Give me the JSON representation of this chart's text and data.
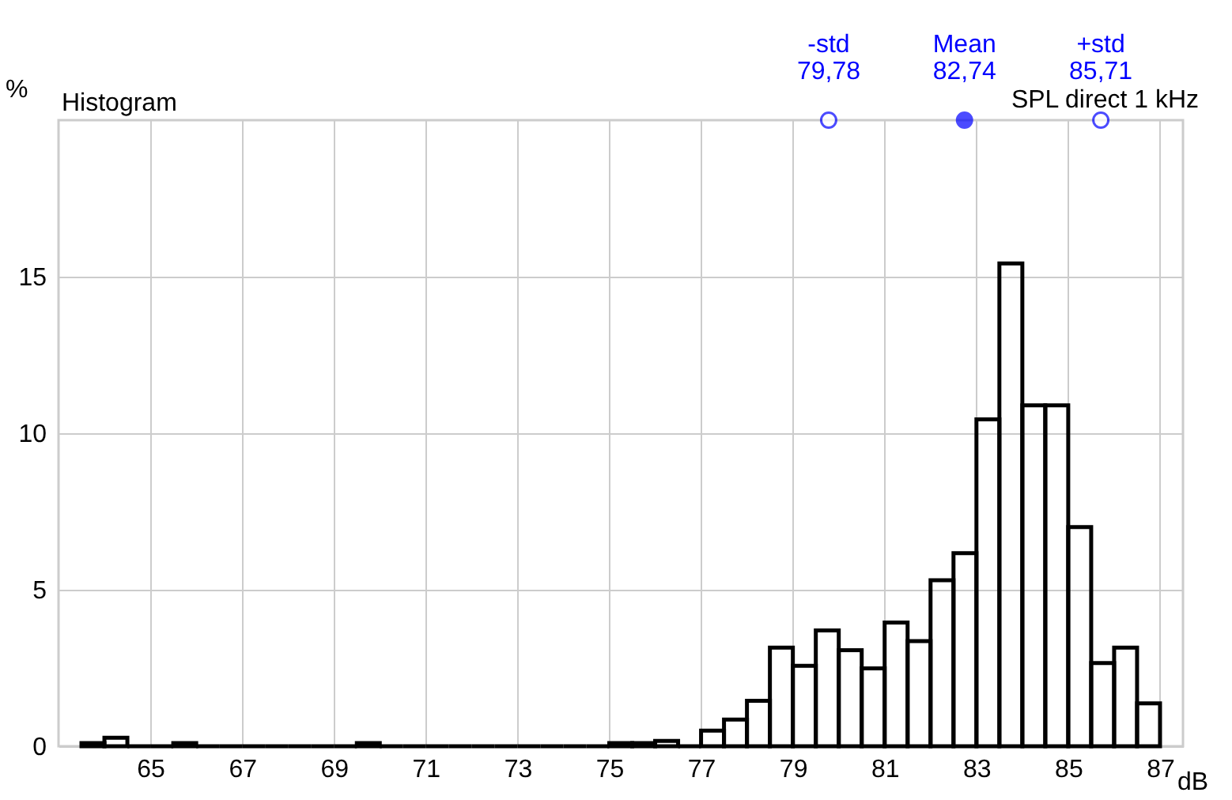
{
  "chart_data": {
    "type": "histogram",
    "title": "Histogram",
    "xlabel": "dB",
    "ylabel": "%",
    "bins": [
      63.5,
      64,
      64.5,
      65,
      65.5,
      66,
      66.5,
      67,
      67.5,
      68,
      68.5,
      69,
      69.5,
      70,
      70.5,
      71,
      71.5,
      72,
      72.5,
      73,
      73.5,
      74,
      74.5,
      75,
      75.5,
      76,
      76.5,
      77,
      77.5,
      78,
      78.5,
      79,
      79.5,
      80,
      80.5,
      81,
      81.5,
      82,
      82.5,
      83,
      83.5,
      84,
      84.5,
      85,
      85.5,
      86,
      86.5,
      87
    ],
    "values": [
      0.1,
      0.27,
      0,
      0,
      0.1,
      0,
      0,
      0,
      0,
      0,
      0,
      0,
      0.1,
      0,
      0,
      0,
      0,
      0,
      0,
      0,
      0,
      0,
      0,
      0.1,
      0.1,
      0.17,
      0,
      0.5,
      0.85,
      1.45,
      3.15,
      2.57,
      3.7,
      3.07,
      2.49,
      3.95,
      3.36,
      5.3,
      6.17,
      10.44,
      15.42,
      10.89,
      10.89,
      7.0,
      2.66,
      3.15,
      1.37
    ],
    "color": "#000000",
    "xlim": [
      63,
      87.5
    ],
    "xticks": [
      65,
      67,
      69,
      71,
      73,
      75,
      77,
      79,
      81,
      83,
      85,
      87
    ],
    "ylim": [
      0,
      20
    ],
    "yticks": [
      0,
      5,
      10,
      15
    ],
    "grid": true,
    "annotations": [
      {
        "text": "-std\n79,78",
        "x": 79.78,
        "y": 20
      },
      {
        "text": "Mean\n82,74",
        "x": 82.74,
        "y": 20
      },
      {
        "text": "+std\n85,71",
        "x": 85.71,
        "y": 20
      },
      "SPL direct  1 kHz"
    ]
  }
}
